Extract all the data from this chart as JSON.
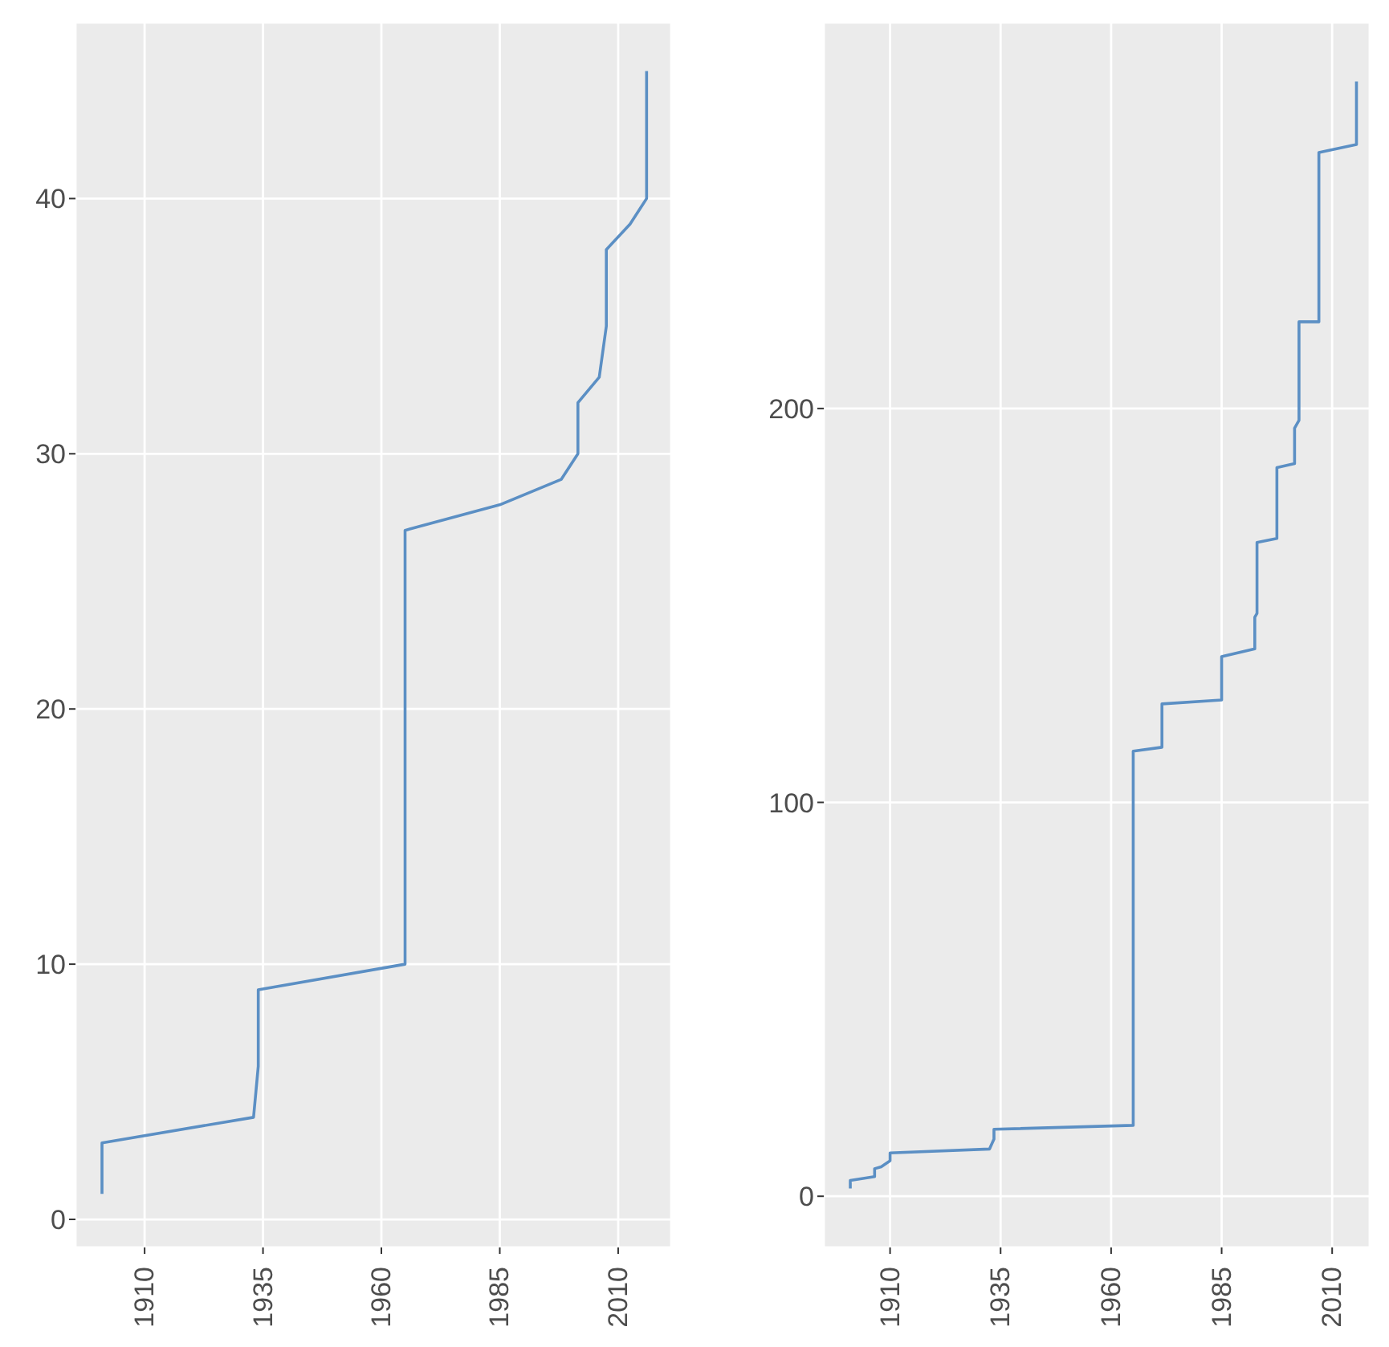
{
  "chart_data": [
    {
      "type": "line",
      "x": [
        1901,
        1901,
        1933,
        1933.5,
        1934,
        1934,
        1965,
        1965,
        1985,
        1998,
        2001.5,
        2001.5,
        2006,
        2007.5,
        2007.5,
        2012.5,
        2016,
        2016
      ],
      "values": [
        1,
        3,
        4,
        5,
        6,
        9,
        10,
        27,
        28,
        29,
        30,
        32,
        33,
        35,
        38,
        39,
        40,
        45
      ],
      "color": "#5b8fc4",
      "xlim": [
        1895.4,
        2021.2
      ],
      "ylim": [
        -1.1,
        46.9
      ],
      "xticks": [
        1910,
        1935,
        1960,
        1985,
        2010
      ],
      "yticks": [
        0,
        10,
        20,
        30,
        40
      ],
      "grid": true
    },
    {
      "type": "line",
      "x": [
        1901,
        1901,
        1906.5,
        1906.5,
        1908,
        1910,
        1910,
        1932.5,
        1933.5,
        1933.5,
        1965,
        1965,
        1971.5,
        1971.5,
        1985,
        1985,
        1992.5,
        1992.5,
        1993,
        1993,
        1997.5,
        1997.5,
        2001.5,
        2001.5,
        2002.5,
        2002.5,
        2007,
        2007,
        2015.5,
        2015.5
      ],
      "values": [
        2,
        4,
        5,
        7,
        7.5,
        9,
        11,
        12,
        14.5,
        17,
        18,
        113,
        114,
        125,
        126,
        137,
        139,
        147,
        148,
        166,
        167,
        185,
        186,
        195,
        197,
        222,
        222,
        265,
        267,
        283
      ],
      "color": "#5b8fc4",
      "xlim": [
        1895,
        2018.5
      ],
      "ylim": [
        -13,
        298
      ],
      "xticks": [
        1910,
        1935,
        1960,
        1985,
        2010
      ],
      "yticks": [
        0,
        100,
        200
      ],
      "grid": true
    }
  ]
}
